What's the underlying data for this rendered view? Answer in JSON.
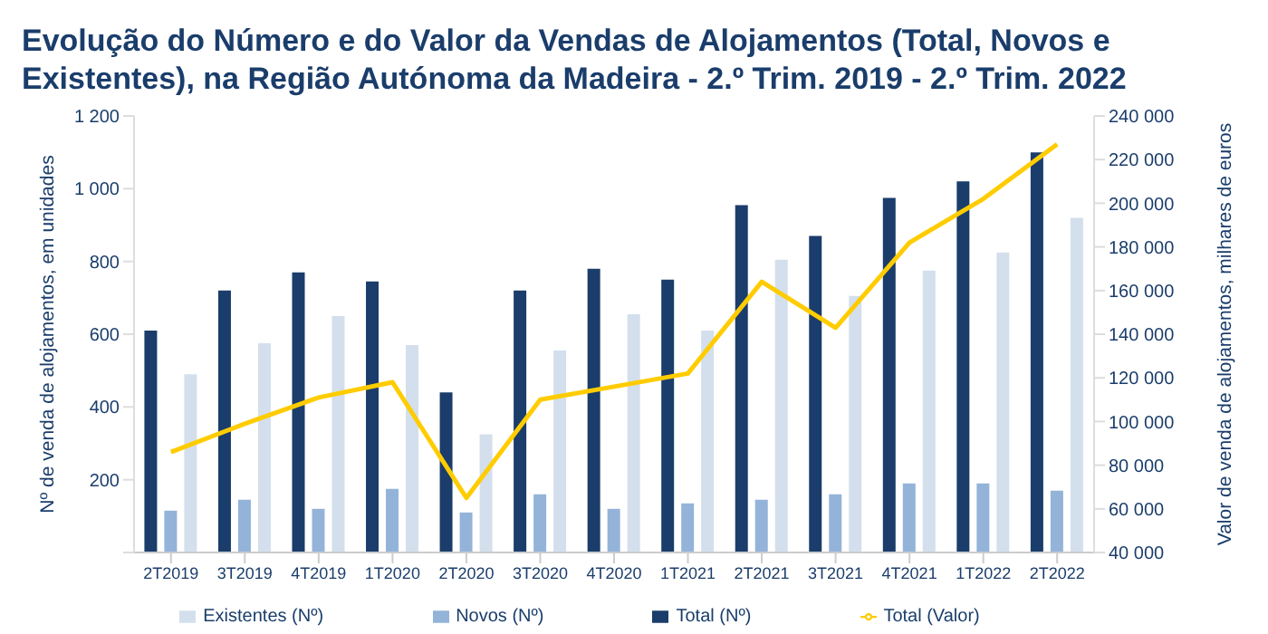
{
  "chart_data": {
    "type": "bar",
    "title": "Evolução do Número e do Valor da Vendas de Alojamentos (Total, Novos e Existentes), na Região Autónoma da Madeira - 2.º Trim. 2019 - 2.º Trim. 2022",
    "categories": [
      "2T2019",
      "3T2019",
      "4T2019",
      "1T2020",
      "2T2020",
      "3T2020",
      "4T2020",
      "1T2021",
      "2T2021",
      "3T2021",
      "4T2021",
      "1T2022",
      "2T2022"
    ],
    "series": [
      {
        "name": "Total (Nº)",
        "color": "#1a3d6b",
        "values": [
          610,
          720,
          770,
          745,
          440,
          720,
          780,
          750,
          955,
          870,
          975,
          1020,
          1100
        ]
      },
      {
        "name": "Novos (Nº)",
        "color": "#94b3d9",
        "values": [
          115,
          145,
          120,
          175,
          110,
          160,
          120,
          135,
          145,
          160,
          190,
          190,
          170
        ]
      },
      {
        "name": "Existentes (Nº)",
        "color": "#d3dfec",
        "values": [
          490,
          575,
          650,
          570,
          325,
          555,
          655,
          610,
          805,
          705,
          775,
          825,
          920
        ]
      },
      {
        "name": "Total (Valor)",
        "type": "line",
        "axis": "y2",
        "color": "#ffcc00",
        "values": [
          86000,
          99000,
          111000,
          118000,
          65000,
          110000,
          116000,
          122000,
          164000,
          143000,
          182000,
          202000,
          227000
        ]
      }
    ],
    "ylabel": "Nº de venda de alojamentos, em unidades",
    "y2label": "Valor de venda de alojamentos, milhares de euros",
    "ylim": [
      0,
      1200
    ],
    "yticks": [
      {
        "value": 0,
        "label": null
      },
      {
        "value": 200,
        "label": "200"
      },
      {
        "value": 400,
        "label": "400"
      },
      {
        "value": 600,
        "label": "600"
      },
      {
        "value": 800,
        "label": "800"
      },
      {
        "value": 1000,
        "label": "1 000"
      },
      {
        "value": 1200,
        "label": "1 200"
      }
    ],
    "y2lim": [
      40000,
      240000
    ],
    "y2ticks": [
      {
        "value": 40000,
        "label": "40 000"
      },
      {
        "value": 60000,
        "label": "60 000"
      },
      {
        "value": 80000,
        "label": "80 000"
      },
      {
        "value": 100000,
        "label": "100 000"
      },
      {
        "value": 120000,
        "label": "120 000"
      },
      {
        "value": 140000,
        "label": "140 000"
      },
      {
        "value": 160000,
        "label": "160 000"
      },
      {
        "value": 180000,
        "label": "180 000"
      },
      {
        "value": 200000,
        "label": "200 000"
      },
      {
        "value": 220000,
        "label": "220 000"
      },
      {
        "value": 240000,
        "label": "240 000"
      }
    ],
    "grid": false,
    "legend": "bottom",
    "marker": "none"
  }
}
